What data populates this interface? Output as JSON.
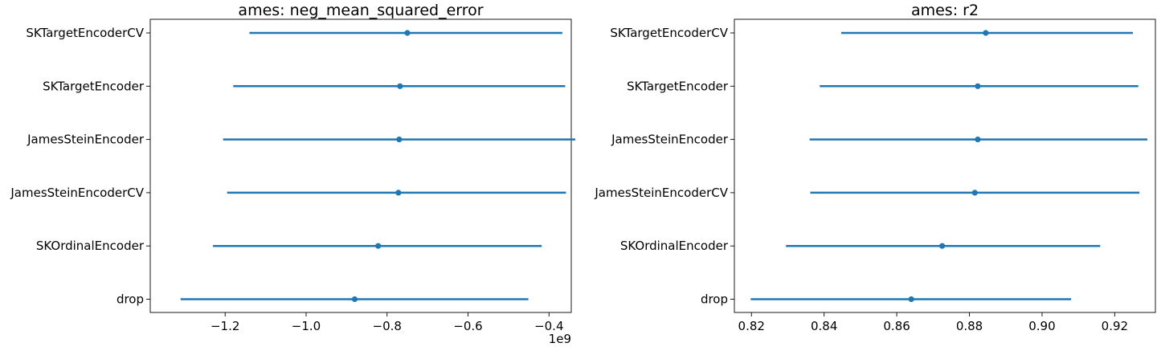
{
  "chart_data": [
    {
      "type": "errorbar",
      "title": "ames: neg_mean_squared_error",
      "xlabel": "",
      "ylabel": "",
      "offset_text": "1e9",
      "x_scale": 1000000000.0,
      "xlim": [
        -1.385,
        -0.345
      ],
      "xticks": [
        -1.2,
        -1.0,
        -0.8,
        -0.6,
        -0.4
      ],
      "xtick_labels": [
        "−1.2",
        "−1.0",
        "−0.8",
        "−0.6",
        "−0.4"
      ],
      "categories": [
        "SKTargetEncoderCV",
        "SKTargetEncoder",
        "JamesSteinEncoder",
        "JamesSteinEncoderCV",
        "SKOrdinalEncoder",
        "drop"
      ],
      "mean": [
        -0.75,
        -0.768,
        -0.77,
        -0.772,
        -0.822,
        -0.88
      ],
      "low": [
        -1.14,
        -1.18,
        -1.205,
        -1.195,
        -1.23,
        -1.31
      ],
      "high": [
        -0.367,
        -0.36,
        -0.335,
        -0.358,
        -0.418,
        -0.451
      ],
      "grid": false
    },
    {
      "type": "errorbar",
      "title": "ames: r2",
      "xlabel": "",
      "ylabel": "",
      "x_scale": 1,
      "xlim": [
        0.8153,
        0.9312
      ],
      "xticks": [
        0.82,
        0.84,
        0.86,
        0.88,
        0.9,
        0.92
      ],
      "xtick_labels": [
        "0.82",
        "0.84",
        "0.86",
        "0.88",
        "0.90",
        "0.92"
      ],
      "categories": [
        "SKTargetEncoderCV",
        "SKTargetEncoder",
        "JamesSteinEncoder",
        "JamesSteinEncoderCV",
        "SKOrdinalEncoder",
        "drop"
      ],
      "mean": [
        0.8845,
        0.8823,
        0.8823,
        0.8815,
        0.8725,
        0.864
      ],
      "low": [
        0.8447,
        0.8388,
        0.836,
        0.8362,
        0.8295,
        0.8198
      ],
      "high": [
        0.925,
        0.9265,
        0.929,
        0.9268,
        0.916,
        0.908
      ],
      "grid": false
    }
  ],
  "colors": {
    "series": "#1f77b4",
    "axes": "#000000"
  }
}
